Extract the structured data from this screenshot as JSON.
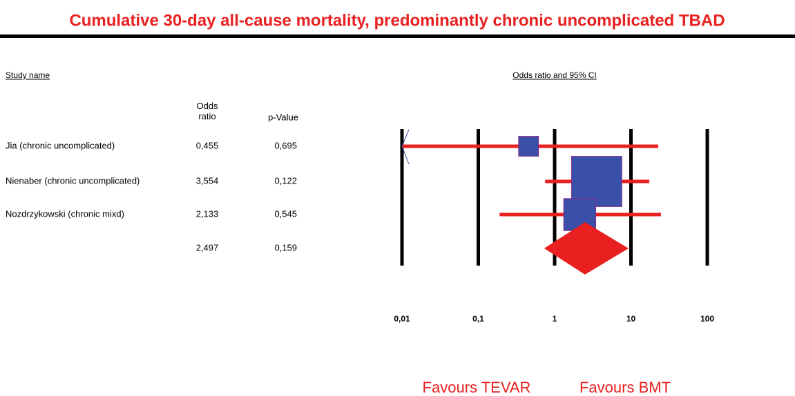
{
  "chart_data": {
    "type": "forest",
    "title": "Cumulative 30-day all-cause mortality, predominantly chronic uncomplicated TBAD",
    "study_header": "Study name",
    "axis_label": "Odds ratio and 95% CI",
    "columns": [
      "Odds ratio",
      "p-Value"
    ],
    "categories": [
      "Jia (chronic uncomplicated)",
      "Nienaber (chronic uncomplicated)",
      "Nozdrzykowski (chronic mixd)",
      null
    ],
    "values": [
      0.455,
      3.554,
      2.133,
      2.497
    ],
    "value_labels": [
      "0,455",
      "3,554",
      "2,133",
      "2,497"
    ],
    "lower": [
      0.01,
      0.75,
      0.19,
      0.73
    ],
    "upper": [
      22.8,
      17.4,
      24.7,
      9.3
    ],
    "p_values": [
      0.695,
      0.122,
      0.545,
      0.159
    ],
    "p_value_labels": [
      "0,695",
      "0,122",
      "0,545",
      "0,159"
    ],
    "weights": [
      10,
      64,
      26,
      null
    ],
    "xlim": [
      0.01,
      100
    ],
    "xticks": [
      {
        "value": 0.01,
        "label": "0,01"
      },
      {
        "value": 0.1,
        "label": "0,1"
      },
      1,
      10,
      100
    ],
    "log_scale": true,
    "annotations": [
      "Favours TEVAR",
      "Favours BMT"
    ],
    "box_color": "#3a50a8",
    "ci_color": "#e82020",
    "summary_color": "#e82020"
  }
}
